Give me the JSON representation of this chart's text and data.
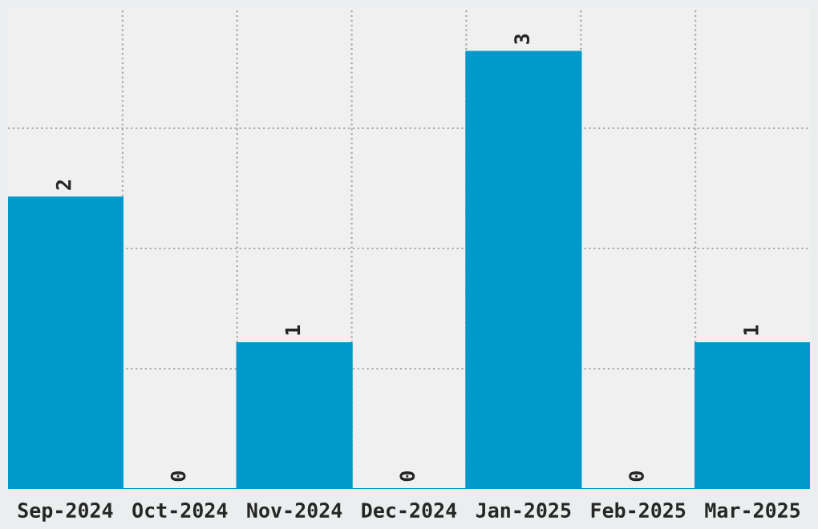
{
  "chart_data": {
    "type": "bar",
    "categories": [
      "Sep-2024",
      "Oct-2024",
      "Nov-2024",
      "Dec-2024",
      "Jan-2025",
      "Feb-2025",
      "Mar-2025"
    ],
    "values": [
      2,
      0,
      1,
      0,
      3,
      0,
      1
    ],
    "color": "#0099cc",
    "ylim": [
      0,
      3.3
    ],
    "yticks": [
      {
        "value": 0.825,
        "label": null
      },
      {
        "value": 1.65,
        "label": null
      },
      {
        "value": 2.475,
        "label": null
      }
    ],
    "data_labels": true,
    "grid": true,
    "legend": false
  }
}
